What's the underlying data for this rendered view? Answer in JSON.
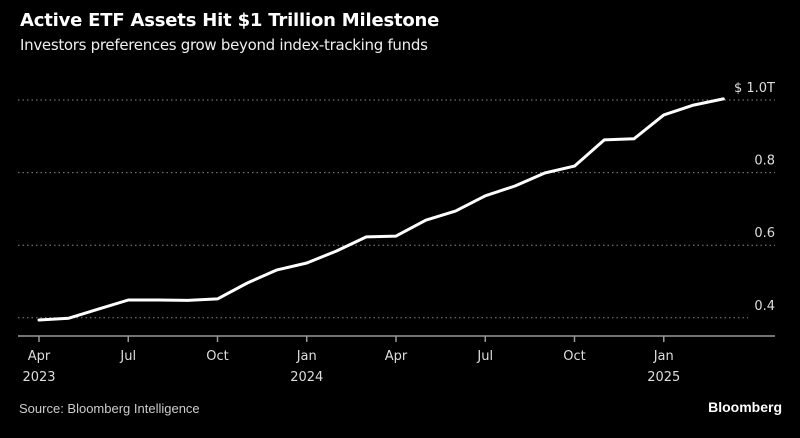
{
  "chart_data": {
    "type": "line",
    "title": "Active ETF Assets Hit $1 Trillion Milestone",
    "subtitle": "Investors preferences grow beyond index-tracking funds",
    "source": "Source: Bloomberg Intelligence",
    "brand": "Bloomberg",
    "x": [
      "2023-04",
      "2023-05",
      "2023-06",
      "2023-07",
      "2023-08",
      "2023-09",
      "2023-10",
      "2023-11",
      "2023-12",
      "2024-01",
      "2024-02",
      "2024-03",
      "2024-04",
      "2024-05",
      "2024-06",
      "2024-07",
      "2024-08",
      "2024-09",
      "2024-10",
      "2024-11",
      "2024-12",
      "2025-01",
      "2025-02",
      "2025-03"
    ],
    "values": [
      0.394,
      0.399,
      0.424,
      0.449,
      0.449,
      0.448,
      0.452,
      0.496,
      0.532,
      0.551,
      0.584,
      0.623,
      0.625,
      0.669,
      0.694,
      0.736,
      0.763,
      0.799,
      0.818,
      0.89,
      0.893,
      0.959,
      0.986,
      1.003
    ],
    "ylim": [
      0.35,
      1.0
    ],
    "y_ticks": [
      {
        "value": 1.0,
        "label": "$ 1.0T"
      },
      {
        "value": 0.8,
        "label": "0.8"
      },
      {
        "value": 0.6,
        "label": "0.6"
      },
      {
        "value": 0.4,
        "label": "0.4"
      }
    ],
    "x_ticks": [
      {
        "index": 0,
        "label": "Apr",
        "year": "2023"
      },
      {
        "index": 3,
        "label": "Jul",
        "year": ""
      },
      {
        "index": 6,
        "label": "Oct",
        "year": ""
      },
      {
        "index": 9,
        "label": "Jan",
        "year": "2024"
      },
      {
        "index": 12,
        "label": "Apr",
        "year": ""
      },
      {
        "index": 15,
        "label": "Jul",
        "year": ""
      },
      {
        "index": 18,
        "label": "Oct",
        "year": ""
      },
      {
        "index": 21,
        "label": "Jan",
        "year": "2025"
      }
    ],
    "grid": true,
    "y_axis_side": "right",
    "colors": {
      "background": "#000000",
      "line": "#ffffff",
      "grid": "#888888"
    }
  }
}
